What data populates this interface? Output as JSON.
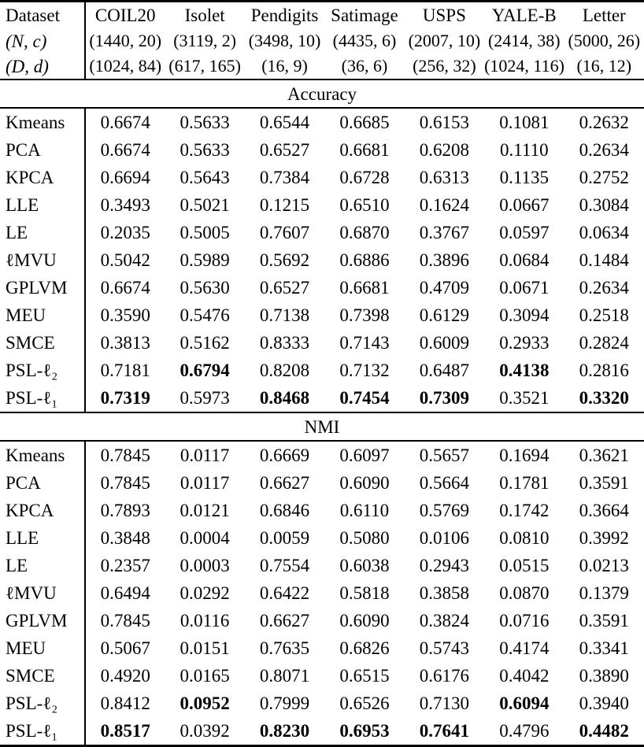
{
  "table": {
    "header": {
      "dataset_label": "Dataset",
      "nc_label": "(N, c)",
      "dd_label": "(D, d)",
      "columns": [
        "COIL20",
        "Isolet",
        "Pendigits",
        "Satimage",
        "USPS",
        "YALE-B",
        "Letter"
      ],
      "nc_values": [
        "(1440, 20)",
        "(3119, 2)",
        "(3498, 10)",
        "(4435, 6)",
        "(2007, 10)",
        "(2414, 38)",
        "(5000, 26)"
      ],
      "dd_values": [
        "(1024, 84)",
        "(617, 165)",
        "(16, 9)",
        "(36, 6)",
        "(256, 32)",
        "(1024, 116)",
        "(16, 12)"
      ]
    },
    "sections": [
      {
        "title": "Accuracy",
        "rows": [
          {
            "method": "Kmeans",
            "values": [
              "0.6674",
              "0.5633",
              "0.6544",
              "0.6685",
              "0.6153",
              "0.1081",
              "0.2632"
            ],
            "bold": [
              0,
              0,
              0,
              0,
              0,
              0,
              0
            ]
          },
          {
            "method": "PCA",
            "values": [
              "0.6674",
              "0.5633",
              "0.6527",
              "0.6681",
              "0.6208",
              "0.1110",
              "0.2634"
            ],
            "bold": [
              0,
              0,
              0,
              0,
              0,
              0,
              0
            ]
          },
          {
            "method": "KPCA",
            "values": [
              "0.6694",
              "0.5643",
              "0.7384",
              "0.6728",
              "0.6313",
              "0.1135",
              "0.2752"
            ],
            "bold": [
              0,
              0,
              0,
              0,
              0,
              0,
              0
            ]
          },
          {
            "method": "LLE",
            "values": [
              "0.3493",
              "0.5021",
              "0.1215",
              "0.6510",
              "0.1624",
              "0.0667",
              "0.3084"
            ],
            "bold": [
              0,
              0,
              0,
              0,
              0,
              0,
              0
            ]
          },
          {
            "method": "LE",
            "values": [
              "0.2035",
              "0.5005",
              "0.7607",
              "0.6870",
              "0.3767",
              "0.0597",
              "0.0634"
            ],
            "bold": [
              0,
              0,
              0,
              0,
              0,
              0,
              0
            ]
          },
          {
            "method": "ℓMVU",
            "values": [
              "0.5042",
              "0.5989",
              "0.5692",
              "0.6886",
              "0.3896",
              "0.0684",
              "0.1484"
            ],
            "bold": [
              0,
              0,
              0,
              0,
              0,
              0,
              0
            ]
          },
          {
            "method": "GPLVM",
            "values": [
              "0.6674",
              "0.5630",
              "0.6527",
              "0.6681",
              "0.4709",
              "0.0671",
              "0.2634"
            ],
            "bold": [
              0,
              0,
              0,
              0,
              0,
              0,
              0
            ]
          },
          {
            "method": "MEU",
            "values": [
              "0.3590",
              "0.5476",
              "0.7138",
              "0.7398",
              "0.6129",
              "0.3094",
              "0.2518"
            ],
            "bold": [
              0,
              0,
              0,
              0,
              0,
              0,
              0
            ]
          },
          {
            "method": "SMCE",
            "values": [
              "0.3813",
              "0.5162",
              "0.8333",
              "0.7143",
              "0.6009",
              "0.2933",
              "0.2824"
            ],
            "bold": [
              0,
              0,
              0,
              0,
              0,
              0,
              0
            ]
          },
          {
            "method": "PSL-ℓ₂",
            "values": [
              "0.7181",
              "0.6794",
              "0.8208",
              "0.7132",
              "0.6487",
              "0.4138",
              "0.2816"
            ],
            "bold": [
              0,
              1,
              0,
              0,
              0,
              1,
              0
            ]
          },
          {
            "method": "PSL-ℓ₁",
            "values": [
              "0.7319",
              "0.5973",
              "0.8468",
              "0.7454",
              "0.7309",
              "0.3521",
              "0.3320"
            ],
            "bold": [
              1,
              0,
              1,
              1,
              1,
              0,
              1
            ]
          }
        ]
      },
      {
        "title": "NMI",
        "rows": [
          {
            "method": "Kmeans",
            "values": [
              "0.7845",
              "0.0117",
              "0.6669",
              "0.6097",
              "0.5657",
              "0.1694",
              "0.3621"
            ],
            "bold": [
              0,
              0,
              0,
              0,
              0,
              0,
              0
            ]
          },
          {
            "method": "PCA",
            "values": [
              "0.7845",
              "0.0117",
              "0.6627",
              "0.6090",
              "0.5664",
              "0.1781",
              "0.3591"
            ],
            "bold": [
              0,
              0,
              0,
              0,
              0,
              0,
              0
            ]
          },
          {
            "method": "KPCA",
            "values": [
              "0.7893",
              "0.0121",
              "0.6846",
              "0.6110",
              "0.5769",
              "0.1742",
              "0.3664"
            ],
            "bold": [
              0,
              0,
              0,
              0,
              0,
              0,
              0
            ]
          },
          {
            "method": "LLE",
            "values": [
              "0.3848",
              "0.0004",
              "0.0059",
              "0.5080",
              "0.0106",
              "0.0810",
              "0.3992"
            ],
            "bold": [
              0,
              0,
              0,
              0,
              0,
              0,
              0
            ]
          },
          {
            "method": "LE",
            "values": [
              "0.2357",
              "0.0003",
              "0.7554",
              "0.6038",
              "0.2943",
              "0.0515",
              "0.0213"
            ],
            "bold": [
              0,
              0,
              0,
              0,
              0,
              0,
              0
            ]
          },
          {
            "method": "ℓMVU",
            "values": [
              "0.6494",
              "0.0292",
              "0.6422",
              "0.5818",
              "0.3858",
              "0.0870",
              "0.1379"
            ],
            "bold": [
              0,
              0,
              0,
              0,
              0,
              0,
              0
            ]
          },
          {
            "method": "GPLVM",
            "values": [
              "0.7845",
              "0.0116",
              "0.6627",
              "0.6090",
              "0.3824",
              "0.0716",
              "0.3591"
            ],
            "bold": [
              0,
              0,
              0,
              0,
              0,
              0,
              0
            ]
          },
          {
            "method": "MEU",
            "values": [
              "0.5067",
              "0.0151",
              "0.7635",
              "0.6826",
              "0.5743",
              "0.4174",
              "0.3341"
            ],
            "bold": [
              0,
              0,
              0,
              0,
              0,
              0,
              0
            ]
          },
          {
            "method": "SMCE",
            "values": [
              "0.4920",
              "0.0165",
              "0.8071",
              "0.6515",
              "0.6176",
              "0.4042",
              "0.3890"
            ],
            "bold": [
              0,
              0,
              0,
              0,
              0,
              0,
              0
            ]
          },
          {
            "method": "PSL-ℓ₂",
            "values": [
              "0.8412",
              "0.0952",
              "0.7999",
              "0.6526",
              "0.7130",
              "0.6094",
              "0.3940"
            ],
            "bold": [
              0,
              1,
              0,
              0,
              0,
              1,
              0
            ]
          },
          {
            "method": "PSL-ℓ₁",
            "values": [
              "0.8517",
              "0.0392",
              "0.8230",
              "0.6953",
              "0.7641",
              "0.4796",
              "0.4482"
            ],
            "bold": [
              1,
              0,
              1,
              1,
              1,
              0,
              1
            ]
          }
        ]
      }
    ]
  },
  "colors": {
    "text": "#000000",
    "background": "#ffffff",
    "rule": "#000000"
  }
}
